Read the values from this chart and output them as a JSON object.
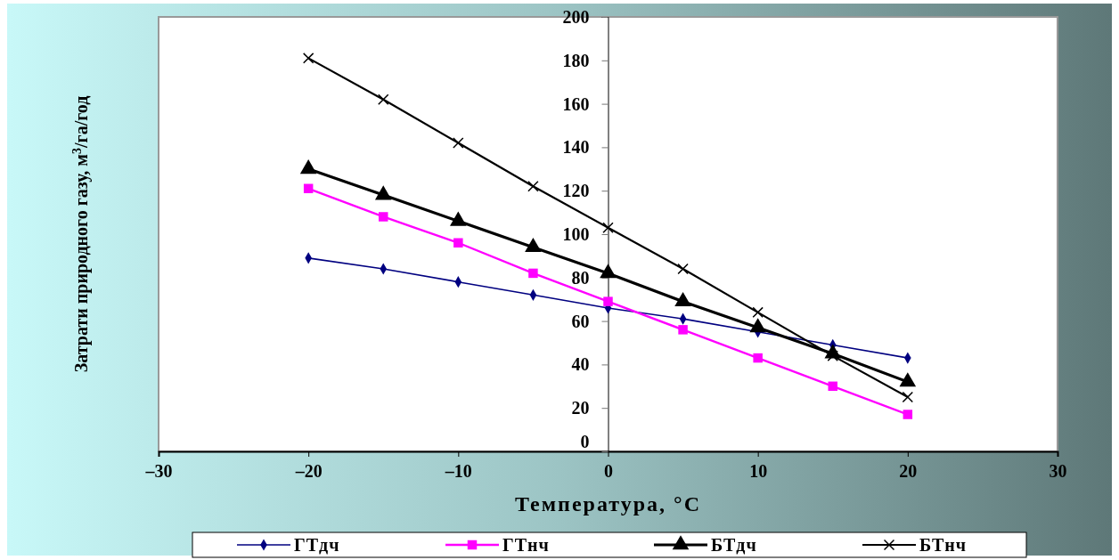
{
  "chart_data": {
    "type": "line",
    "xlabel": "Температура, °C",
    "ylabel": "Затрати природного газу, м$^{3}$/га/год",
    "x": [
      -20,
      -15,
      -10,
      -5,
      0,
      5,
      10,
      15,
      20
    ],
    "series": [
      {
        "name": "ГТдч",
        "color": "#000080",
        "marker": "diamond",
        "values": [
          89,
          84,
          78,
          72,
          66,
          61,
          55,
          49,
          43
        ]
      },
      {
        "name": "ГТнч",
        "color": "#ff00ff",
        "marker": "square",
        "values": [
          121,
          108,
          96,
          82,
          69,
          56,
          43,
          30,
          17
        ]
      },
      {
        "name": "БТдч",
        "color": "#000000",
        "marker": "triangle",
        "values": [
          130,
          118,
          106,
          94,
          82,
          69,
          57,
          45,
          32
        ]
      },
      {
        "name": "БТнч",
        "color": "#000000",
        "marker": "cross",
        "values": [
          181,
          162,
          142,
          122,
          103,
          84,
          64,
          44,
          25
        ]
      }
    ],
    "xlim": [
      -30,
      30
    ],
    "xticks": [
      {
        "value": -30,
        "label": "–30"
      },
      {
        "value": -20,
        "label": "–20"
      },
      {
        "value": -10,
        "label": "–10"
      },
      0,
      10,
      20,
      30
    ],
    "ylim": [
      0,
      200
    ],
    "yticks": [
      0,
      20,
      40,
      60,
      80,
      100,
      120,
      140,
      160,
      180,
      200
    ],
    "grid": false,
    "legend": "bottom"
  }
}
